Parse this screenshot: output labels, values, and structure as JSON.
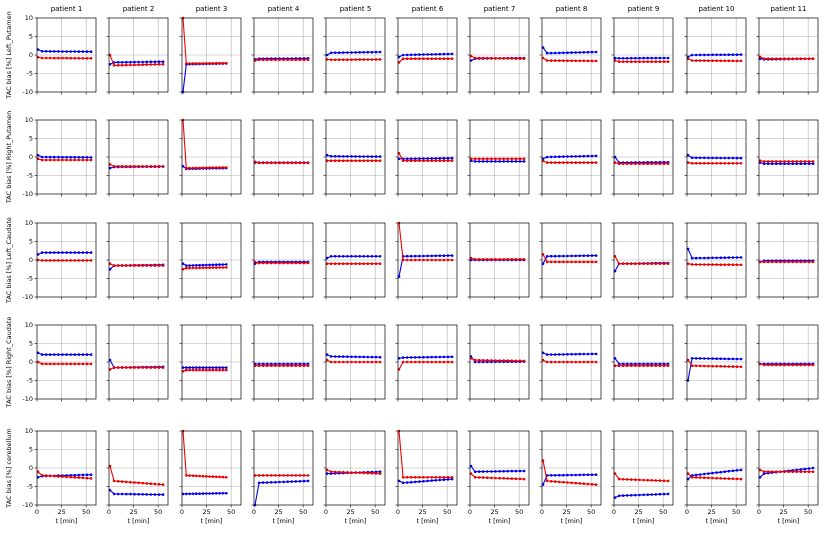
{
  "figure": {
    "column_titles": [
      "patient 1",
      "patient 2",
      "patient 3",
      "patient 4",
      "patient 5",
      "patient 6",
      "patient 7",
      "patient 8",
      "patient 9",
      "patient 10",
      "patient 11"
    ],
    "row_ylabels": [
      "TAC bias [%] Left_Putamen",
      "TAC bias [%] Right_Putamen",
      "TAC bias [%] Left_Caudate",
      "TAC bias [%] Right_Caudate",
      "TAC bias [%] cerebellum"
    ],
    "xlabel": "t [min]",
    "x_ticks": [
      0,
      25,
      50
    ],
    "y_ticks": [
      -10,
      -5,
      0,
      5,
      10
    ],
    "colors": {
      "series_a": "#0000ee",
      "series_b": "#ee0000",
      "grid": "#b0b0b0"
    }
  },
  "chart_data": {
    "type": "line",
    "layout": "small-multiples grid, 5 rows x 11 columns, shared axes",
    "xlim": [
      0,
      60
    ],
    "ylim": [
      -10,
      10
    ],
    "grid": true,
    "series_colors": [
      "blue",
      "red"
    ],
    "rows": [
      {
        "region": "Left_Putamen",
        "panels": [
          {
            "patient": "patient 1",
            "end_min": 55,
            "blue": [
              1.5,
              1.0,
              0.9
            ],
            "red": [
              -0.6,
              -0.8,
              -0.9
            ]
          },
          {
            "patient": "patient 2",
            "end_min": 55,
            "blue": [
              -2.5,
              -2.0,
              -1.8
            ],
            "red": [
              0.0,
              -2.8,
              -2.5
            ]
          },
          {
            "patient": "patient 3",
            "end_min": 45,
            "blue": [
              -10.0,
              -2.5,
              -2.3
            ],
            "red": [
              10.0,
              -2.3,
              -2.2
            ]
          },
          {
            "patient": "patient 4",
            "end_min": 55,
            "blue": [
              -1.2,
              -1.0,
              -0.9
            ],
            "red": [
              -1.5,
              -1.3,
              -1.3
            ]
          },
          {
            "patient": "patient 5",
            "end_min": 55,
            "blue": [
              0.0,
              0.6,
              0.8
            ],
            "red": [
              -1.2,
              -1.3,
              -1.2
            ]
          },
          {
            "patient": "patient 6",
            "end_min": 55,
            "blue": [
              -0.5,
              0.0,
              0.3
            ],
            "red": [
              -2.0,
              -1.0,
              -1.0
            ]
          },
          {
            "patient": "patient 7",
            "end_min": 55,
            "blue": [
              -1.5,
              -1.0,
              -0.8
            ],
            "red": [
              -0.3,
              -0.8,
              -1.0
            ]
          },
          {
            "patient": "patient 8",
            "end_min": 55,
            "blue": [
              2.0,
              0.5,
              0.8
            ],
            "red": [
              -0.8,
              -1.5,
              -1.6
            ]
          },
          {
            "patient": "patient 9",
            "end_min": 55,
            "blue": [
              -0.8,
              -0.9,
              -0.8
            ],
            "red": [
              -1.5,
              -1.8,
              -1.8
            ]
          },
          {
            "patient": "patient 10",
            "end_min": 55,
            "blue": [
              -0.5,
              0.0,
              0.1
            ],
            "red": [
              -1.0,
              -1.5,
              -1.6
            ]
          },
          {
            "patient": "patient 11",
            "end_min": 55,
            "blue": [
              -1.0,
              -1.2,
              -1.0
            ],
            "red": [
              -0.5,
              -1.0,
              -1.0
            ]
          }
        ]
      },
      {
        "region": "Right_Putamen",
        "panels": [
          {
            "patient": "patient 1",
            "end_min": 55,
            "blue": [
              0.5,
              0.0,
              -0.1
            ],
            "red": [
              -0.5,
              -0.8,
              -0.8
            ]
          },
          {
            "patient": "patient 2",
            "end_min": 55,
            "blue": [
              -3.0,
              -2.7,
              -2.6
            ],
            "red": [
              -2.0,
              -2.5,
              -2.5
            ]
          },
          {
            "patient": "patient 3",
            "end_min": 45,
            "blue": [
              -2.5,
              -3.2,
              -3.0
            ],
            "red": [
              10.0,
              -3.0,
              -2.8
            ]
          },
          {
            "patient": "patient 4",
            "end_min": 55,
            "blue": [
              -1.5,
              -1.5,
              -1.5
            ],
            "red": [
              -1.3,
              -1.6,
              -1.6
            ]
          },
          {
            "patient": "patient 5",
            "end_min": 55,
            "blue": [
              0.5,
              0.2,
              0.1
            ],
            "red": [
              -1.0,
              -1.0,
              -1.0
            ]
          },
          {
            "patient": "patient 6",
            "end_min": 55,
            "blue": [
              -0.5,
              -0.5,
              -0.3
            ],
            "red": [
              1.0,
              -1.0,
              -1.0
            ]
          },
          {
            "patient": "patient 7",
            "end_min": 55,
            "blue": [
              -1.0,
              -1.2,
              -1.2
            ],
            "red": [
              -0.5,
              -0.5,
              -0.5
            ]
          },
          {
            "patient": "patient 8",
            "end_min": 55,
            "blue": [
              -0.5,
              0.0,
              0.3
            ],
            "red": [
              -1.0,
              -1.5,
              -1.5
            ]
          },
          {
            "patient": "patient 9",
            "end_min": 55,
            "blue": [
              0.0,
              -1.5,
              -1.4
            ],
            "red": [
              -1.5,
              -1.8,
              -1.8
            ]
          },
          {
            "patient": "patient 10",
            "end_min": 55,
            "blue": [
              0.5,
              -0.2,
              -0.3
            ],
            "red": [
              -1.5,
              -1.7,
              -1.7
            ]
          },
          {
            "patient": "patient 11",
            "end_min": 55,
            "blue": [
              -1.5,
              -1.8,
              -1.8
            ],
            "red": [
              -1.0,
              -1.2,
              -1.2
            ]
          }
        ]
      },
      {
        "region": "Left_Caudate",
        "panels": [
          {
            "patient": "patient 1",
            "end_min": 55,
            "blue": [
              1.5,
              2.0,
              2.0
            ],
            "red": [
              0.0,
              -0.1,
              -0.1
            ]
          },
          {
            "patient": "patient 2",
            "end_min": 55,
            "blue": [
              -2.5,
              -1.5,
              -1.3
            ],
            "red": [
              -1.0,
              -1.5,
              -1.5
            ]
          },
          {
            "patient": "patient 3",
            "end_min": 45,
            "blue": [
              -1.0,
              -1.5,
              -1.2
            ],
            "red": [
              -2.5,
              -2.2,
              -2.0
            ]
          },
          {
            "patient": "patient 4",
            "end_min": 55,
            "blue": [
              -1.0,
              -0.5,
              -0.5
            ],
            "red": [
              -0.5,
              -0.8,
              -0.8
            ]
          },
          {
            "patient": "patient 5",
            "end_min": 55,
            "blue": [
              0.5,
              1.0,
              1.0
            ],
            "red": [
              -1.0,
              -1.0,
              -1.0
            ]
          },
          {
            "patient": "patient 6",
            "end_min": 55,
            "blue": [
              -4.5,
              1.0,
              1.2
            ],
            "red": [
              10.0,
              0.0,
              0.0
            ]
          },
          {
            "patient": "patient 7",
            "end_min": 55,
            "blue": [
              0.0,
              0.0,
              0.0
            ],
            "red": [
              0.5,
              0.2,
              0.2
            ]
          },
          {
            "patient": "patient 8",
            "end_min": 55,
            "blue": [
              -1.0,
              1.0,
              1.2
            ],
            "red": [
              1.5,
              -0.5,
              -0.5
            ]
          },
          {
            "patient": "patient 9",
            "end_min": 55,
            "blue": [
              -3.0,
              -1.0,
              -0.8
            ],
            "red": [
              1.0,
              -1.0,
              -1.0
            ]
          },
          {
            "patient": "patient 10",
            "end_min": 55,
            "blue": [
              3.0,
              0.5,
              0.7
            ],
            "red": [
              -1.0,
              -1.2,
              -1.3
            ]
          },
          {
            "patient": "patient 11",
            "end_min": 55,
            "blue": [
              -0.5,
              -0.2,
              -0.2
            ],
            "red": [
              -0.5,
              -0.5,
              -0.5
            ]
          }
        ]
      },
      {
        "region": "Right_Caudate",
        "panels": [
          {
            "patient": "patient 1",
            "end_min": 55,
            "blue": [
              2.5,
              2.0,
              2.0
            ],
            "red": [
              0.0,
              -0.5,
              -0.5
            ]
          },
          {
            "patient": "patient 2",
            "end_min": 55,
            "blue": [
              0.5,
              -1.5,
              -1.3
            ],
            "red": [
              -2.0,
              -1.5,
              -1.5
            ]
          },
          {
            "patient": "patient 3",
            "end_min": 45,
            "blue": [
              -1.5,
              -1.5,
              -1.5
            ],
            "red": [
              -2.5,
              -2.2,
              -2.2
            ]
          },
          {
            "patient": "patient 4",
            "end_min": 55,
            "blue": [
              -0.5,
              -0.5,
              -0.5
            ],
            "red": [
              -1.0,
              -1.0,
              -1.0
            ]
          },
          {
            "patient": "patient 5",
            "end_min": 55,
            "blue": [
              2.0,
              1.5,
              1.3
            ],
            "red": [
              0.5,
              0.0,
              0.0
            ]
          },
          {
            "patient": "patient 6",
            "end_min": 55,
            "blue": [
              1.0,
              1.2,
              1.4
            ],
            "red": [
              -2.0,
              0.0,
              0.0
            ]
          },
          {
            "patient": "patient 7",
            "end_min": 55,
            "blue": [
              1.5,
              0.0,
              0.1
            ],
            "red": [
              1.0,
              0.5,
              0.3
            ]
          },
          {
            "patient": "patient 8",
            "end_min": 55,
            "blue": [
              2.5,
              2.0,
              2.2
            ],
            "red": [
              0.5,
              0.0,
              0.0
            ]
          },
          {
            "patient": "patient 9",
            "end_min": 55,
            "blue": [
              1.0,
              -0.5,
              -0.5
            ],
            "red": [
              -1.0,
              -1.0,
              -1.0
            ]
          },
          {
            "patient": "patient 10",
            "end_min": 55,
            "blue": [
              -5.0,
              1.0,
              0.8
            ],
            "red": [
              0.5,
              -1.0,
              -1.3
            ]
          },
          {
            "patient": "patient 11",
            "end_min": 55,
            "blue": [
              -0.5,
              -0.5,
              -0.5
            ],
            "red": [
              -0.5,
              -0.8,
              -0.8
            ]
          }
        ]
      },
      {
        "region": "cerebellum",
        "panels": [
          {
            "patient": "patient 1",
            "end_min": 55,
            "blue": [
              -2.5,
              -2.2,
              -1.8
            ],
            "red": [
              -1.0,
              -2.0,
              -2.8
            ]
          },
          {
            "patient": "patient 2",
            "end_min": 55,
            "blue": [
              -6.0,
              -7.0,
              -7.2
            ],
            "red": [
              0.5,
              -3.5,
              -4.5
            ]
          },
          {
            "patient": "patient 3",
            "end_min": 45,
            "blue": [
              -7.0,
              -7.0,
              -6.8
            ],
            "red": [
              10.0,
              -2.0,
              -2.5
            ]
          },
          {
            "patient": "patient 4",
            "end_min": 55,
            "blue": [
              -10.0,
              -4.0,
              -3.5
            ],
            "red": [
              -2.0,
              -2.0,
              -2.0
            ]
          },
          {
            "patient": "patient 5",
            "end_min": 55,
            "blue": [
              -1.5,
              -1.5,
              -1.0
            ],
            "red": [
              -0.5,
              -1.0,
              -1.5
            ]
          },
          {
            "patient": "patient 6",
            "end_min": 55,
            "blue": [
              -3.5,
              -4.0,
              -3.0
            ],
            "red": [
              10.0,
              -2.5,
              -2.5
            ]
          },
          {
            "patient": "patient 7",
            "end_min": 55,
            "blue": [
              0.5,
              -1.0,
              -0.8
            ],
            "red": [
              -1.5,
              -2.5,
              -3.0
            ]
          },
          {
            "patient": "patient 8",
            "end_min": 55,
            "blue": [
              -4.5,
              -2.0,
              -1.8
            ],
            "red": [
              2.0,
              -3.5,
              -4.5
            ]
          },
          {
            "patient": "patient 9",
            "end_min": 55,
            "blue": [
              -8.0,
              -7.5,
              -7.0
            ],
            "red": [
              -1.5,
              -3.0,
              -3.5
            ]
          },
          {
            "patient": "patient 10",
            "end_min": 55,
            "blue": [
              -3.0,
              -2.0,
              -0.5
            ],
            "red": [
              -1.5,
              -2.5,
              -3.0
            ]
          },
          {
            "patient": "patient 11",
            "end_min": 55,
            "blue": [
              -2.5,
              -1.5,
              0.0
            ],
            "red": [
              -0.5,
              -1.0,
              -1.0
            ]
          }
        ]
      }
    ]
  }
}
